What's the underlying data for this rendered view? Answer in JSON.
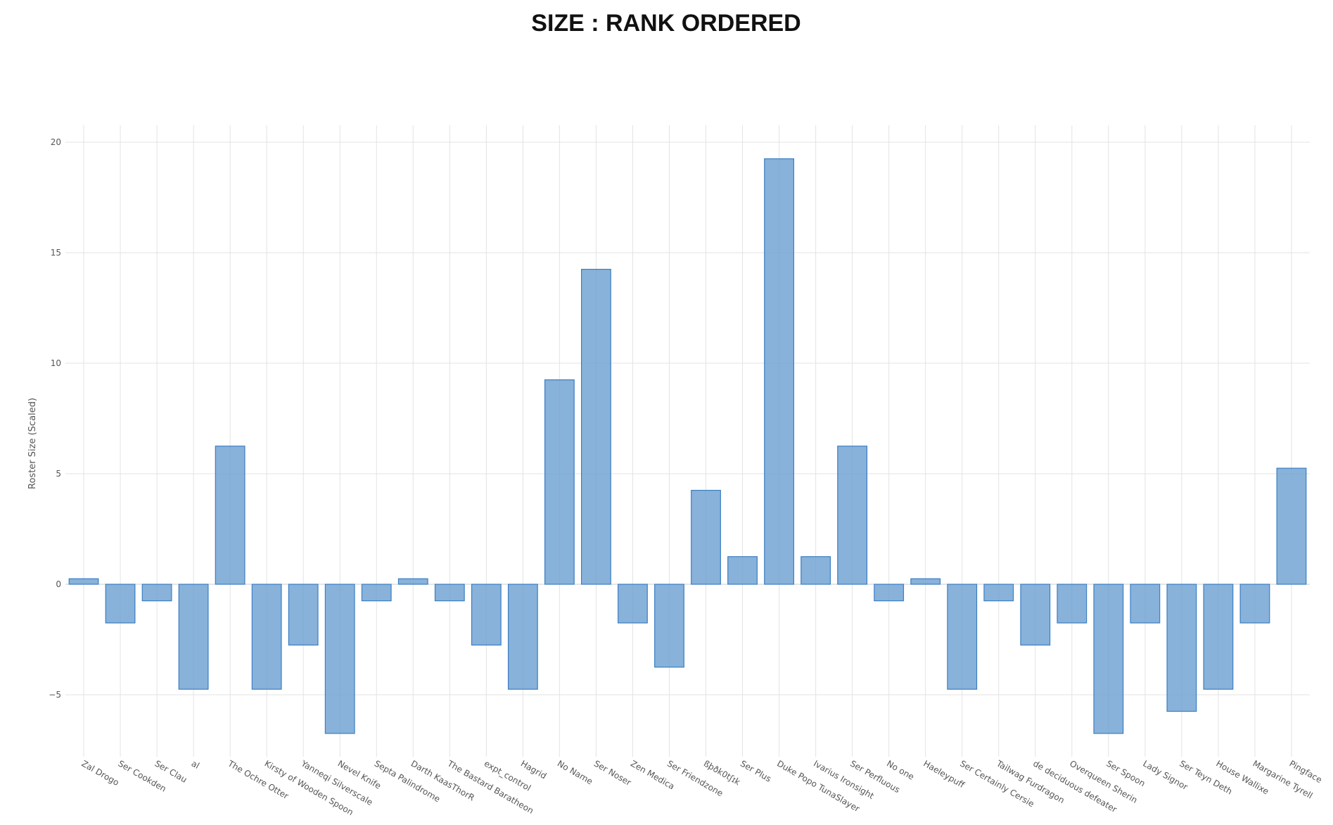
{
  "chart_data": {
    "type": "bar",
    "title": "SIZE : RANK ORDERED",
    "xlabel": "",
    "ylabel": "Roster Size (Scaled)",
    "ylim": [
      -8,
      20.7
    ],
    "yticks": [
      20,
      15,
      10,
      5,
      0,
      -5
    ],
    "ytick_labels": [
      "20",
      "15",
      "10",
      "5",
      "0",
      "−5"
    ],
    "grid": true,
    "legend": "none",
    "bar_color": "#6a9fd1",
    "bar_edge_color": "#3b7ec2",
    "categories": [
      "Zal Drogo",
      "Ser Cookden",
      "Ser Clau",
      "al",
      "The Ochre Otter",
      "Kirsty of Wooden Spoon",
      "Yanneqi Silverscale",
      "Nevel Knife",
      "Septa Palindrome",
      "Darth KaasThorR",
      "The Bastard Baratheon",
      "expt_control",
      "Hagrid",
      "No Name",
      "Ser Noser",
      "Zen Medica",
      "Ser Friendzone",
      "ßþðk0tʃɪk",
      "Ser Plus",
      "Duke Popo TunaSlayer",
      "Ivarius Ironsight",
      "Ser Perfluous",
      "No one",
      "Haeleypuff",
      "Ser Certainly Cersie",
      "Tailwag Furdragon",
      "de deciduous defeater",
      "Overqueen Sherin",
      "Ser Spoon",
      "Lady Signor",
      "Ser Teyn Deth",
      "House Wallixe",
      "Margarine Tyrell",
      "Pingface"
    ],
    "values": [
      0.25,
      -1.75,
      -0.75,
      -4.75,
      6.25,
      -4.75,
      -2.75,
      -6.75,
      -0.75,
      0.25,
      -0.75,
      -2.75,
      -4.75,
      9.25,
      14.25,
      -1.75,
      -3.75,
      4.25,
      1.25,
      19.25,
      1.25,
      6.25,
      -0.75,
      0.25,
      -4.75,
      -0.75,
      -2.75,
      -1.75,
      -6.75,
      -1.75,
      -5.75,
      -4.75,
      -1.75,
      5.25
    ]
  }
}
